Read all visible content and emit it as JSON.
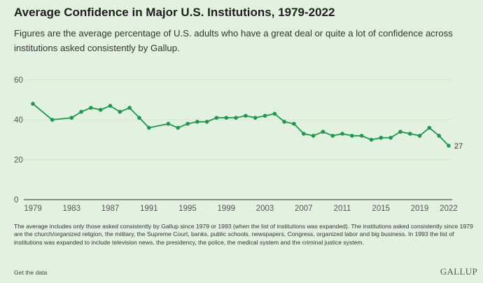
{
  "header": {
    "title": "Average Confidence in Major U.S. Institutions, 1979-2022",
    "subtitle": "Figures are the average percentage of U.S. adults who have a great deal or quite a lot of confidence across institutions asked consistently by Gallup."
  },
  "chart_data": {
    "type": "line",
    "title": "Average Confidence in Major U.S. Institutions, 1979-2022",
    "xlabel": "",
    "ylabel": "",
    "ylim": [
      0,
      60
    ],
    "xlim": [
      1979,
      2022
    ],
    "yticks": [
      0,
      20,
      40,
      60
    ],
    "xticks": [
      1979,
      1983,
      1987,
      1991,
      1995,
      1999,
      2003,
      2007,
      2011,
      2015,
      2019,
      2022
    ],
    "grid": "horizontal",
    "line_color": "#1b9a4b",
    "series": [
      {
        "x": [
          1979,
          1981,
          1983,
          1984,
          1985,
          1986,
          1987,
          1988,
          1989,
          1990,
          1991,
          1993,
          1994,
          1995,
          1996,
          1997,
          1998,
          1999,
          2000,
          2001,
          2002,
          2003,
          2004,
          2005,
          2006,
          2007,
          2008,
          2009,
          2010,
          2011,
          2012,
          2013,
          2014,
          2015,
          2016,
          2017,
          2018,
          2019,
          2020,
          2021,
          2022
        ],
        "y": [
          48,
          40,
          41,
          44,
          46,
          45,
          47,
          44,
          46,
          41,
          36,
          38,
          36,
          38,
          39,
          39,
          41,
          41,
          41,
          42,
          41,
          42,
          43,
          39,
          38,
          33,
          32,
          34,
          32,
          33,
          32,
          32,
          30,
          31,
          31,
          34,
          33,
          32,
          36,
          32,
          27
        ]
      }
    ],
    "annotations": [
      {
        "x": 2022,
        "text": "27"
      }
    ]
  },
  "footer": {
    "note": "The average includes only those asked consistently by Gallup since 1979 or 1993 (when the list of institutions was expanded). The institutions asked consistently since 1979 are the church/organized religion, the military, the Supreme Court, banks, public schools, newspapers, Congress, organized labor and big business. In 1993 the list of institutions was expanded to include television news, the presidency, the police, the medical system and the criminal justice system.",
    "get_data": "Get the data",
    "logo": "GALLUP"
  }
}
